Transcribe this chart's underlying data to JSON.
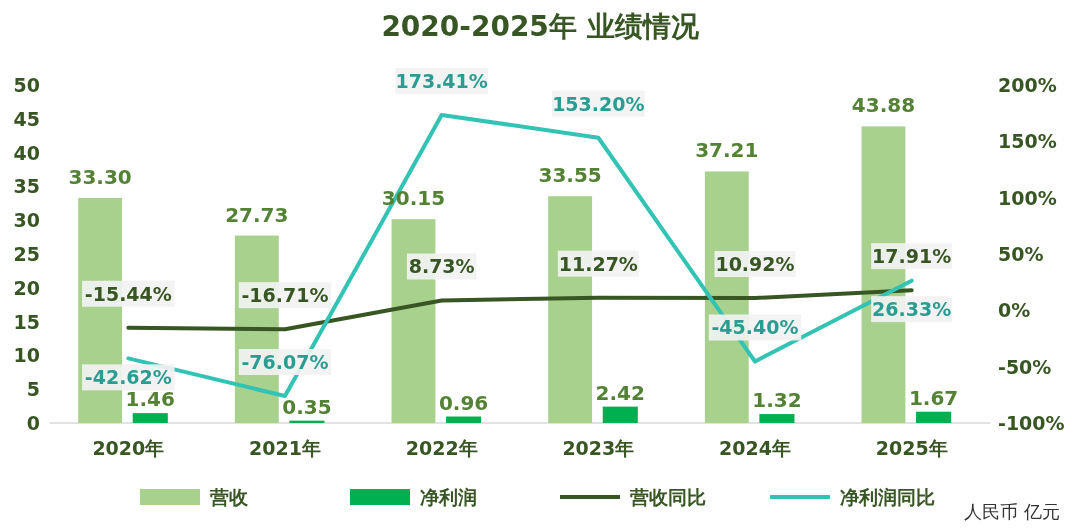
{
  "chart_data": {
    "type": "bar",
    "title": "2020-2025年 业绩情况",
    "categories": [
      "2020年",
      "2021年",
      "2022年",
      "2023年",
      "2024年",
      "2025年"
    ],
    "series": [
      {
        "name": "营收",
        "color": "#a9d18e",
        "values": [
          33.3,
          27.73,
          30.15,
          33.55,
          37.21,
          43.88
        ],
        "value_labels": [
          "33.30",
          "27.73",
          "30.15",
          "33.55",
          "37.21",
          "43.88"
        ]
      },
      {
        "name": "净利润",
        "color": "#00b050",
        "values": [
          1.46,
          0.35,
          0.96,
          2.42,
          1.32,
          1.67
        ],
        "value_labels": [
          "1.46",
          "0.35",
          "0.96",
          "2.42",
          "1.32",
          "1.67"
        ]
      },
      {
        "name": "营收同比",
        "type": "line",
        "axis": "y2",
        "color": "#375623",
        "values": [
          -15.44,
          -16.71,
          8.73,
          11.27,
          10.92,
          17.91
        ],
        "value_labels": [
          "-15.44%",
          "-16.71%",
          "8.73%",
          "11.27%",
          "10.92%",
          "17.91%"
        ]
      },
      {
        "name": "净利润同比",
        "type": "line",
        "axis": "y2",
        "color": "#33c3b5",
        "values": [
          -42.62,
          -76.07,
          173.41,
          153.2,
          -45.4,
          26.33
        ],
        "value_labels": [
          "-42.62%",
          "-76.07%",
          "173.41%",
          "153.20%",
          "-45.40%",
          "26.33%"
        ]
      }
    ],
    "ylim": [
      0,
      50
    ],
    "yticks": [
      0,
      5,
      10,
      15,
      20,
      25,
      30,
      35,
      40,
      45,
      50
    ],
    "y2lim": [
      -100,
      200
    ],
    "y2ticks": [
      {
        "value": -100,
        "label": "-100%"
      },
      {
        "value": -50,
        "label": "-50%"
      },
      {
        "value": 0,
        "label": "0%"
      },
      {
        "value": 50,
        "label": "50%"
      },
      {
        "value": 100,
        "label": "100%"
      },
      {
        "value": 150,
        "label": "150%"
      },
      {
        "value": 200,
        "label": "200%"
      }
    ],
    "legend": "bottom",
    "grid": false,
    "marker": "none",
    "line_style": "solid",
    "annotations": [
      "人民币 亿元"
    ]
  }
}
